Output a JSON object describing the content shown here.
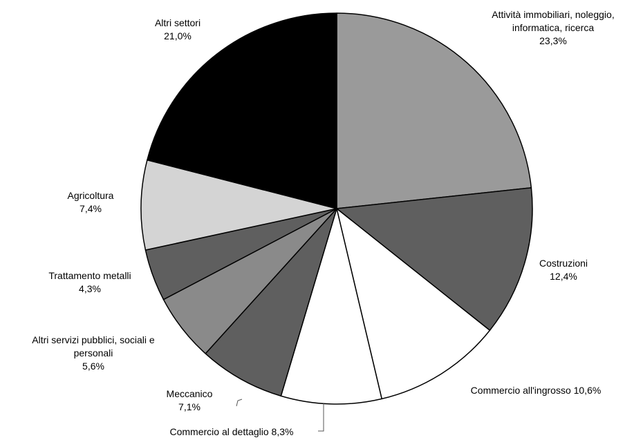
{
  "chart_data": {
    "type": "pie",
    "start_angle_deg": 0,
    "direction": "clockwise",
    "slices": [
      {
        "label": "Attività immobiliari, noleggio, informatica, ricerca",
        "value": 23.3,
        "display": "23,3%",
        "color": "#9a9a9a"
      },
      {
        "label": "Costruzioni",
        "value": 12.4,
        "display": "12,4%",
        "color": "#5f5f5f"
      },
      {
        "label": "Commercio all'ingrosso",
        "value": 10.6,
        "display": "10,6%",
        "color": "#ffffff"
      },
      {
        "label": "Commercio al dettaglio",
        "value": 8.3,
        "display": "8,3%",
        "color": "#ffffff"
      },
      {
        "label": "Meccanico",
        "value": 7.1,
        "display": "7,1%",
        "color": "#5f5f5f"
      },
      {
        "label": "Altri servizi pubblici, sociali e personali",
        "value": 5.6,
        "display": "5,6%",
        "color": "#8a8a8a"
      },
      {
        "label": "Trattamento metalli",
        "value": 4.3,
        "display": "4,3%",
        "color": "#5f5f5f"
      },
      {
        "label": "Agricoltura",
        "value": 7.4,
        "display": "7,4%",
        "color": "#d4d4d4"
      },
      {
        "label": "Altri settori",
        "value": 21.0,
        "display": "21,0%",
        "color": "#000000"
      }
    ],
    "legend": "none",
    "slice_outline_color": "#000000"
  }
}
